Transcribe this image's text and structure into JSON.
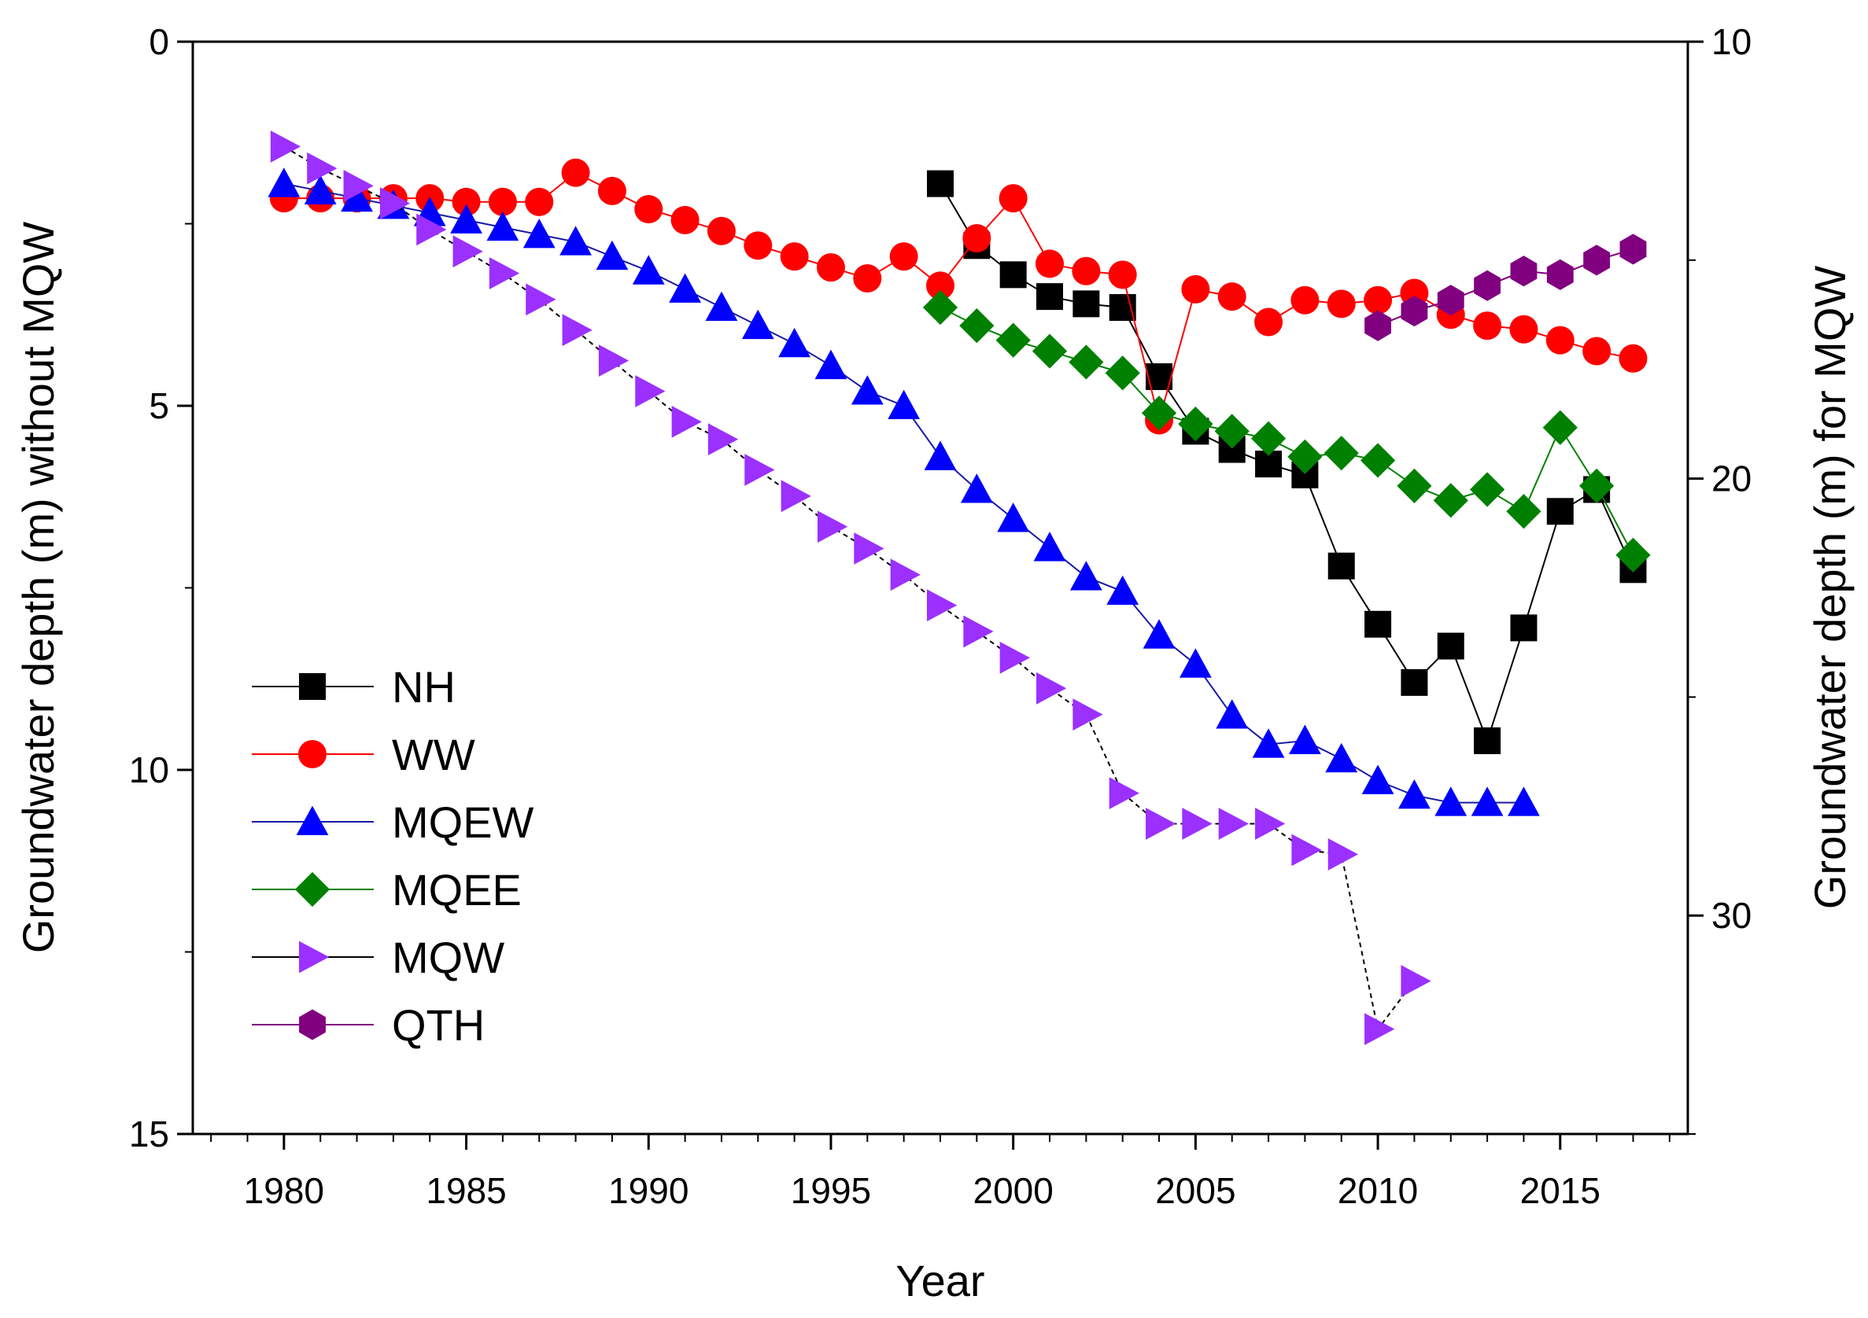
{
  "chart_data": {
    "type": "line",
    "xlabel": "Year",
    "ylabel_left": "Groundwater depth (m) without MQW",
    "ylabel_right": "Groundwater depth (m) for MQW",
    "xlim": [
      1977.5,
      2018.5
    ],
    "ylim_left": [
      0,
      15
    ],
    "ylim_right": [
      10,
      35
    ],
    "y_inverted": true,
    "grid": false,
    "legend_position": "left-middle",
    "x_ticks": [
      "1980",
      "1985",
      "1990",
      "1995",
      "2000",
      "2005",
      "2010",
      "2015"
    ],
    "y_ticks_left": [
      "0",
      "5",
      "10",
      "15"
    ],
    "y_ticks_right": [
      "10",
      "20",
      "30"
    ],
    "series": [
      {
        "name": "NH",
        "axis": "left",
        "color": "#000000",
        "line_color": "#000000",
        "marker": "square",
        "line_style": "solid",
        "x": [
          1998,
          1999,
          2000,
          2001,
          2002,
          2003,
          2004,
          2005,
          2006,
          2007,
          2008,
          2009,
          2010,
          2011,
          2012,
          2013,
          2014,
          2015,
          2016,
          2017
        ],
        "values": [
          1.95,
          2.8,
          3.2,
          3.5,
          3.6,
          3.65,
          4.6,
          5.35,
          5.6,
          5.8,
          5.95,
          7.2,
          8.0,
          8.8,
          8.3,
          9.6,
          8.05,
          6.45,
          6.15,
          7.25
        ]
      },
      {
        "name": "WW",
        "axis": "left",
        "color": "#ff0000",
        "line_color": "#ff0000",
        "marker": "circle",
        "line_style": "solid",
        "x": [
          1980,
          1981,
          1982,
          1983,
          1984,
          1985,
          1986,
          1987,
          1988,
          1989,
          1990,
          1991,
          1992,
          1993,
          1994,
          1995,
          1996,
          1997,
          1998,
          1999,
          2000,
          2001,
          2002,
          2003,
          2004,
          2005,
          2006,
          2007,
          2008,
          2009,
          2010,
          2011,
          2012,
          2013,
          2014,
          2015,
          2016,
          2017
        ],
        "values": [
          2.15,
          2.15,
          2.15,
          2.15,
          2.15,
          2.2,
          2.2,
          2.2,
          1.8,
          2.05,
          2.3,
          2.45,
          2.6,
          2.8,
          2.95,
          3.1,
          3.25,
          2.95,
          3.35,
          2.7,
          2.15,
          3.05,
          3.15,
          3.2,
          5.2,
          3.4,
          3.5,
          3.85,
          3.55,
          3.6,
          3.55,
          3.45,
          3.75,
          3.9,
          3.95,
          4.1,
          4.25,
          4.35
        ]
      },
      {
        "name": "MQEW",
        "axis": "left",
        "color": "#0000ff",
        "line_color": "#1a1aa6",
        "marker": "triangle-up",
        "line_style": "solid",
        "x": [
          1980,
          1981,
          1982,
          1983,
          1984,
          1985,
          1986,
          1987,
          1988,
          1989,
          1990,
          1991,
          1992,
          1993,
          1994,
          1995,
          1996,
          1997,
          1998,
          1999,
          2000,
          2001,
          2002,
          2003,
          2004,
          2005,
          2006,
          2007,
          2008,
          2009,
          2010,
          2011,
          2012,
          2013,
          2014
        ],
        "values": [
          1.95,
          2.05,
          2.15,
          2.25,
          2.35,
          2.45,
          2.55,
          2.65,
          2.75,
          2.95,
          3.15,
          3.4,
          3.65,
          3.9,
          4.15,
          4.45,
          4.8,
          5.0,
          5.7,
          6.15,
          6.55,
          6.95,
          7.35,
          7.55,
          8.15,
          8.55,
          9.25,
          9.65,
          9.6,
          9.85,
          10.15,
          10.35,
          10.45,
          10.45,
          10.45
        ]
      },
      {
        "name": "MQEE",
        "axis": "left",
        "color": "#008000",
        "line_color": "#008000",
        "marker": "diamond",
        "line_style": "solid",
        "x": [
          1998,
          1999,
          2000,
          2001,
          2002,
          2003,
          2004,
          2005,
          2006,
          2007,
          2008,
          2009,
          2010,
          2011,
          2012,
          2013,
          2014,
          2015,
          2016,
          2017
        ],
        "values": [
          3.65,
          3.9,
          4.1,
          4.25,
          4.4,
          4.55,
          5.1,
          5.25,
          5.35,
          5.45,
          5.7,
          5.65,
          5.75,
          6.1,
          6.3,
          6.15,
          6.45,
          5.3,
          6.1,
          7.05
        ]
      },
      {
        "name": "MQW",
        "axis": "right",
        "color": "#9b30ff",
        "line_color": "#000000",
        "marker": "triangle-right",
        "line_style": "dashed",
        "x": [
          1980,
          1981,
          1982,
          1983,
          1984,
          1985,
          1986,
          1987,
          1988,
          1989,
          1990,
          1991,
          1992,
          1993,
          1994,
          1995,
          1996,
          1997,
          1998,
          1999,
          2000,
          2001,
          2002,
          2003,
          2004,
          2005,
          2006,
          2007,
          2008,
          2009,
          2010,
          2011
        ],
        "values": [
          12.4,
          12.9,
          13.3,
          13.7,
          14.3,
          14.8,
          15.3,
          15.9,
          16.6,
          17.3,
          18.0,
          18.7,
          19.1,
          19.8,
          20.4,
          21.1,
          21.6,
          22.2,
          22.9,
          23.5,
          24.1,
          24.8,
          25.4,
          27.2,
          27.9,
          27.9,
          27.9,
          27.9,
          28.5,
          28.6,
          32.6,
          31.5
        ]
      },
      {
        "name": "QTH",
        "axis": "left",
        "color": "#800080",
        "line_color": "#800080",
        "marker": "hexagon",
        "line_style": "solid",
        "x": [
          2010,
          2011,
          2012,
          2013,
          2014,
          2015,
          2016,
          2017
        ],
        "values": [
          3.9,
          3.7,
          3.55,
          3.35,
          3.15,
          3.2,
          3.0,
          2.85
        ]
      }
    ]
  }
}
